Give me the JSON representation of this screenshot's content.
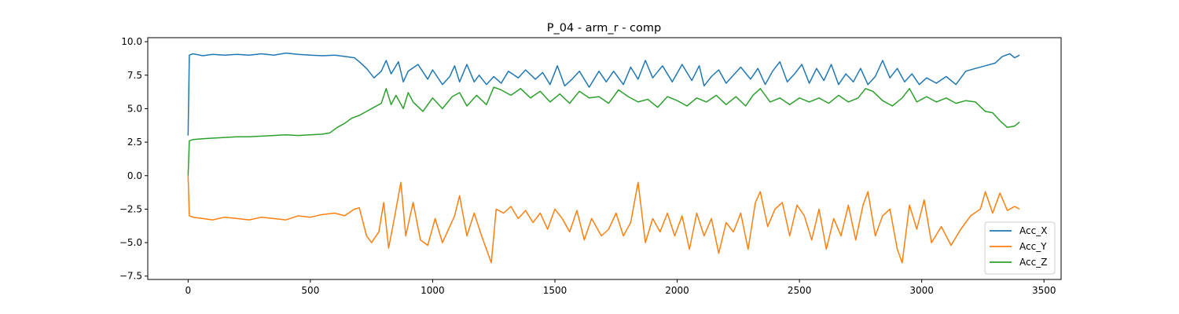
{
  "chart_data": {
    "type": "line",
    "title": "P_04 - arm_r - comp",
    "xlabel": "",
    "ylabel": "",
    "xlim": [
      -165,
      3570
    ],
    "ylim": [
      -7.75,
      10.3
    ],
    "xticks": [
      0,
      500,
      1000,
      1500,
      2000,
      2500,
      3000,
      3500
    ],
    "xtick_labels": [
      "0",
      "500",
      "1000",
      "1500",
      "2000",
      "2500",
      "3000",
      "3500"
    ],
    "yticks": [
      -7.5,
      -5.0,
      -2.5,
      0.0,
      2.5,
      5.0,
      7.5,
      10.0
    ],
    "ytick_labels": [
      "−7.5",
      "−5.0",
      "−2.5",
      "0.0",
      "2.5",
      "5.0",
      "7.5",
      "10.0"
    ],
    "grid": false,
    "legend_position": "lower-right",
    "colors": {
      "Acc_X": "#1f77b4",
      "Acc_Y": "#ff7f0e",
      "Acc_Z": "#2ca02c"
    },
    "series": [
      {
        "name": "Acc_X",
        "x": [
          0,
          5,
          20,
          60,
          100,
          150,
          200,
          250,
          300,
          350,
          400,
          450,
          500,
          550,
          600,
          640,
          680,
          700,
          730,
          760,
          790,
          810,
          830,
          860,
          880,
          900,
          940,
          980,
          1000,
          1040,
          1070,
          1090,
          1110,
          1140,
          1170,
          1190,
          1220,
          1250,
          1280,
          1310,
          1350,
          1380,
          1420,
          1450,
          1480,
          1510,
          1540,
          1570,
          1600,
          1640,
          1680,
          1710,
          1740,
          1780,
          1810,
          1840,
          1870,
          1900,
          1940,
          1980,
          2020,
          2060,
          2090,
          2110,
          2140,
          2170,
          2200,
          2230,
          2260,
          2300,
          2330,
          2360,
          2390,
          2420,
          2450,
          2480,
          2510,
          2540,
          2570,
          2600,
          2630,
          2660,
          2690,
          2720,
          2750,
          2780,
          2810,
          2840,
          2870,
          2900,
          2930,
          2960,
          2990,
          3020,
          3060,
          3100,
          3140,
          3180,
          3220,
          3260,
          3300,
          3330,
          3360,
          3380,
          3400
        ],
        "y": [
          3.0,
          9.0,
          9.1,
          8.95,
          9.05,
          9.0,
          9.05,
          9.0,
          9.1,
          9.0,
          9.15,
          9.05,
          9.0,
          8.95,
          9.0,
          8.9,
          8.8,
          8.5,
          8.0,
          7.3,
          7.8,
          8.6,
          7.6,
          8.5,
          7.0,
          7.8,
          8.3,
          7.2,
          7.9,
          6.8,
          7.4,
          8.2,
          7.0,
          8.3,
          7.0,
          7.5,
          6.8,
          7.4,
          6.9,
          7.8,
          7.3,
          7.9,
          7.2,
          7.7,
          6.8,
          8.2,
          6.7,
          7.2,
          7.8,
          6.6,
          7.8,
          7.0,
          7.8,
          6.8,
          8.1,
          7.2,
          8.6,
          7.3,
          8.2,
          7.0,
          8.3,
          7.1,
          8.2,
          6.7,
          7.4,
          7.9,
          6.9,
          7.5,
          8.1,
          7.2,
          8.0,
          6.8,
          7.8,
          8.5,
          7.0,
          7.6,
          8.3,
          6.9,
          8.0,
          7.1,
          8.3,
          6.8,
          7.6,
          7.0,
          8.0,
          6.8,
          7.4,
          8.6,
          7.3,
          8.0,
          7.0,
          7.6,
          6.8,
          7.3,
          6.9,
          7.4,
          6.8,
          7.8,
          8.0,
          8.2,
          8.4,
          8.9,
          9.1,
          8.8,
          9.0
        ]
      },
      {
        "name": "Acc_Y",
        "x": [
          0,
          5,
          20,
          60,
          100,
          150,
          200,
          250,
          300,
          350,
          400,
          450,
          500,
          550,
          600,
          640,
          680,
          700,
          730,
          750,
          780,
          800,
          820,
          840,
          870,
          890,
          920,
          950,
          980,
          1010,
          1040,
          1060,
          1090,
          1110,
          1140,
          1170,
          1200,
          1220,
          1240,
          1260,
          1290,
          1320,
          1350,
          1380,
          1410,
          1440,
          1470,
          1500,
          1530,
          1560,
          1590,
          1620,
          1650,
          1690,
          1720,
          1750,
          1780,
          1810,
          1840,
          1870,
          1900,
          1930,
          1960,
          1990,
          2020,
          2050,
          2080,
          2110,
          2140,
          2170,
          2200,
          2230,
          2260,
          2290,
          2320,
          2340,
          2370,
          2400,
          2430,
          2460,
          2490,
          2520,
          2550,
          2580,
          2610,
          2640,
          2670,
          2700,
          2730,
          2760,
          2780,
          2810,
          2840,
          2870,
          2900,
          2920,
          2950,
          2980,
          3010,
          3040,
          3080,
          3120,
          3160,
          3200,
          3240,
          3260,
          3290,
          3320,
          3350,
          3380,
          3400
        ],
        "y": [
          0.0,
          -3.0,
          -3.1,
          -3.2,
          -3.3,
          -3.1,
          -3.2,
          -3.3,
          -3.1,
          -3.2,
          -3.3,
          -3.0,
          -3.1,
          -2.9,
          -2.8,
          -3.0,
          -2.5,
          -2.4,
          -4.5,
          -5.0,
          -4.2,
          -2.0,
          -5.4,
          -3.5,
          -0.5,
          -4.5,
          -2.0,
          -4.8,
          -5.2,
          -3.2,
          -5.0,
          -4.2,
          -3.0,
          -1.5,
          -4.5,
          -2.8,
          -4.5,
          -5.5,
          -6.5,
          -2.5,
          -2.8,
          -2.3,
          -3.2,
          -2.6,
          -3.5,
          -2.8,
          -4.0,
          -2.5,
          -3.2,
          -4.2,
          -2.6,
          -4.8,
          -3.2,
          -4.5,
          -4.0,
          -2.8,
          -4.5,
          -3.5,
          -0.5,
          -5.0,
          -3.2,
          -4.2,
          -2.8,
          -4.5,
          -3.0,
          -5.5,
          -2.8,
          -4.5,
          -3.2,
          -5.8,
          -3.5,
          -4.2,
          -2.8,
          -5.5,
          -2.0,
          -1.2,
          -3.8,
          -2.5,
          -2.0,
          -4.5,
          -2.2,
          -3.0,
          -4.8,
          -2.5,
          -5.5,
          -3.2,
          -4.5,
          -2.2,
          -4.8,
          -2.2,
          -1.2,
          -4.5,
          -3.0,
          -2.5,
          -5.5,
          -6.5,
          -2.2,
          -4.0,
          -1.8,
          -5.0,
          -3.8,
          -5.2,
          -4.0,
          -3.0,
          -2.5,
          -1.2,
          -2.8,
          -1.3,
          -2.6,
          -2.3,
          -2.5
        ]
      },
      {
        "name": "Acc_Z",
        "x": [
          0,
          5,
          20,
          60,
          100,
          150,
          200,
          250,
          300,
          350,
          400,
          450,
          500,
          550,
          580,
          610,
          640,
          670,
          700,
          730,
          760,
          790,
          810,
          830,
          850,
          880,
          900,
          920,
          960,
          1000,
          1040,
          1080,
          1110,
          1140,
          1180,
          1220,
          1250,
          1280,
          1320,
          1360,
          1400,
          1440,
          1480,
          1520,
          1560,
          1600,
          1640,
          1680,
          1720,
          1760,
          1800,
          1840,
          1880,
          1920,
          1960,
          2000,
          2040,
          2080,
          2120,
          2160,
          2200,
          2240,
          2280,
          2310,
          2340,
          2380,
          2420,
          2460,
          2500,
          2540,
          2580,
          2620,
          2660,
          2700,
          2740,
          2770,
          2800,
          2840,
          2880,
          2920,
          2950,
          2980,
          3020,
          3060,
          3100,
          3140,
          3180,
          3220,
          3260,
          3290,
          3320,
          3350,
          3380,
          3400
        ],
        "y": [
          0.0,
          2.6,
          2.7,
          2.75,
          2.8,
          2.85,
          2.9,
          2.9,
          2.95,
          3.0,
          3.05,
          3.0,
          3.05,
          3.1,
          3.2,
          3.6,
          3.9,
          4.3,
          4.5,
          4.8,
          5.1,
          5.4,
          6.5,
          5.3,
          6.0,
          5.0,
          6.2,
          5.5,
          4.8,
          5.8,
          5.0,
          5.9,
          6.2,
          5.2,
          6.0,
          5.3,
          6.6,
          6.4,
          6.0,
          6.5,
          5.8,
          6.3,
          5.5,
          6.1,
          5.4,
          6.3,
          5.8,
          5.9,
          5.4,
          6.4,
          5.9,
          5.5,
          5.7,
          5.1,
          5.9,
          5.6,
          5.2,
          5.8,
          5.5,
          6.0,
          5.3,
          5.9,
          5.2,
          6.0,
          6.5,
          5.5,
          5.8,
          5.3,
          5.8,
          5.5,
          5.8,
          5.4,
          6.0,
          5.5,
          5.8,
          6.5,
          6.3,
          5.6,
          5.2,
          5.8,
          6.5,
          5.5,
          5.9,
          5.5,
          5.8,
          5.4,
          5.6,
          5.5,
          4.8,
          4.7,
          4.1,
          3.6,
          3.7,
          4.0
        ]
      }
    ]
  }
}
